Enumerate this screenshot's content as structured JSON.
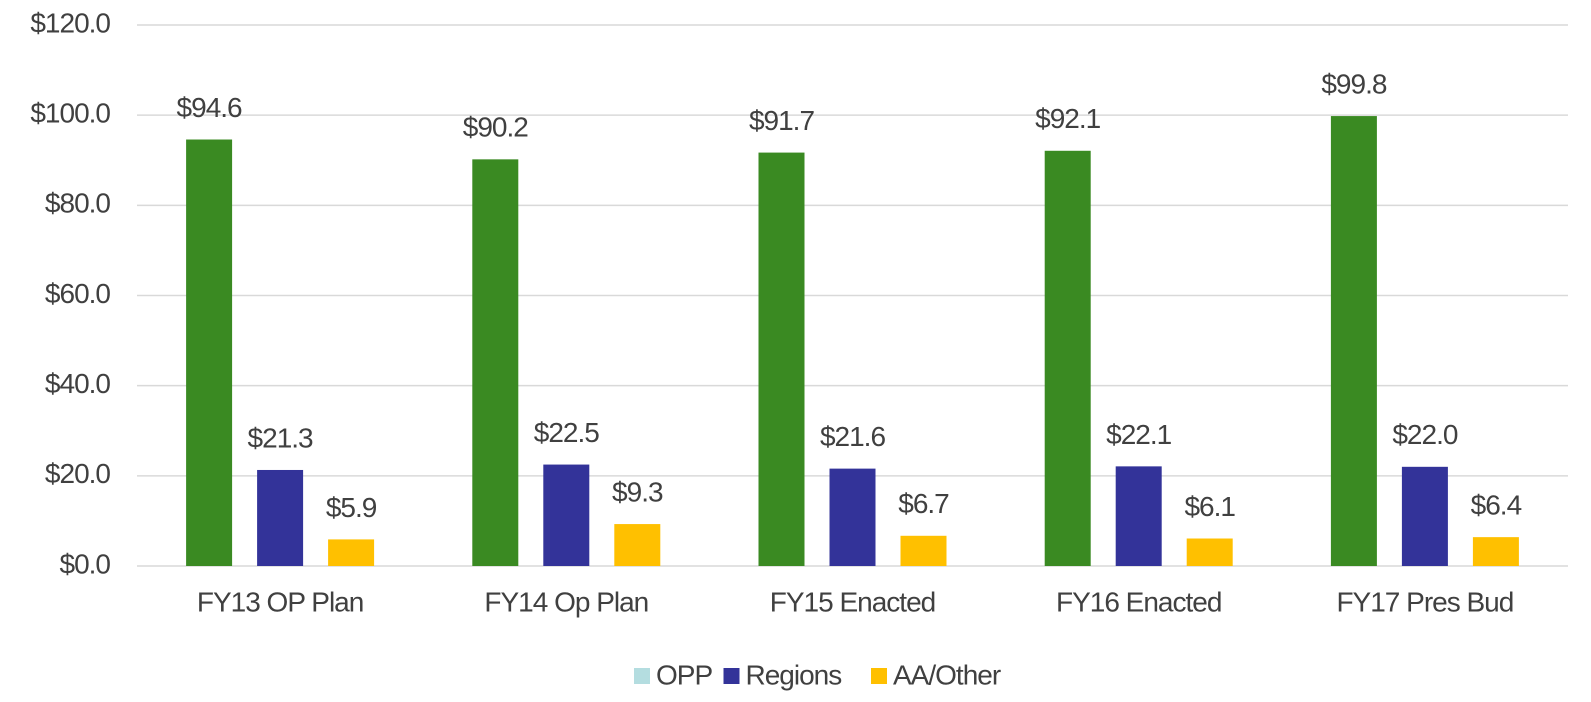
{
  "chart_data": {
    "type": "bar",
    "categories": [
      "FY13 OP Plan",
      "FY14 Op Plan",
      "FY15 Enacted",
      "FY16 Enacted",
      "FY17 Pres Bud"
    ],
    "series": [
      {
        "name": "OPP",
        "color": "#3a8a22",
        "legend_color": "#b4dde0",
        "values": [
          94.6,
          90.2,
          91.7,
          92.1,
          99.8
        ],
        "value_labels": [
          "$94.6",
          "$90.2",
          "$91.7",
          "$92.1",
          "$99.8"
        ]
      },
      {
        "name": "Regions",
        "color": "#333399",
        "values": [
          21.3,
          22.5,
          21.6,
          22.1,
          22.0
        ],
        "value_labels": [
          "$21.3",
          "$22.5",
          "$21.6",
          "$22.1",
          "$22.0"
        ]
      },
      {
        "name": "AA/Other",
        "color": "#ffc000",
        "values": [
          5.9,
          9.3,
          6.7,
          6.1,
          6.4
        ],
        "value_labels": [
          "$5.9",
          "$9.3",
          "$6.7",
          "$6.1",
          "$6.4"
        ]
      }
    ],
    "ylim": [
      0,
      120
    ],
    "yticks": [
      {
        "value": 0,
        "label": "$0.0"
      },
      {
        "value": 20,
        "label": "$20.0"
      },
      {
        "value": 40,
        "label": "$40.0"
      },
      {
        "value": 60,
        "label": "$60.0"
      },
      {
        "value": 80,
        "label": "$80.0"
      },
      {
        "value": 100,
        "label": "$100.0"
      },
      {
        "value": 120,
        "label": "$120.0"
      }
    ],
    "grid": true,
    "legend": "bottom"
  }
}
